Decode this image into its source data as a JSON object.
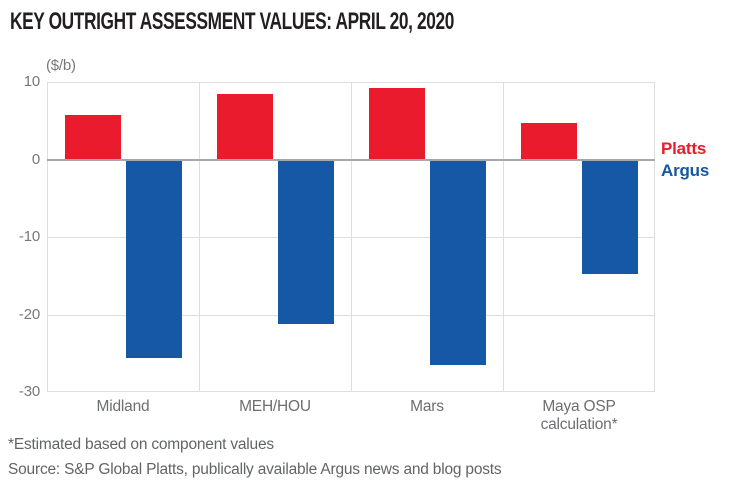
{
  "header": {
    "title": "KEY OUTRIGHT ASSESSMENT VALUES: APRIL 20, 2020"
  },
  "footer": {
    "footnote": "*Estimated based on component values",
    "source": "Source: S&P Global Platts, publically available Argus news and blog posts"
  },
  "chart_data": {
    "type": "bar",
    "title": "KEY OUTRIGHT ASSESSMENT VALUES: APRIL 20, 2020",
    "unit_label": "($/b)",
    "xlabel": "",
    "ylabel": "($/b)",
    "categories": [
      "Midland",
      "MEH/HOU",
      "Mars",
      "Maya OSP calculation*"
    ],
    "series": [
      {
        "name": "Platts",
        "color": "#ea1b2d",
        "values": [
          5.8,
          8.5,
          9.2,
          4.7
        ]
      },
      {
        "name": "Argus",
        "color": "#1658a5",
        "values": [
          -25.6,
          -21.2,
          -26.5,
          -14.8
        ]
      }
    ],
    "ylim": [
      -30,
      10
    ],
    "yticks": [
      10,
      0,
      -10,
      -20,
      -30
    ],
    "grid": true,
    "legend_position": "right-of-plot",
    "styles": {
      "grid_color": "#dcdddf",
      "zero_line_color": "#a5a7aa",
      "tick_text_color": "#77787b",
      "category_text_color": "#6d6e71"
    }
  }
}
